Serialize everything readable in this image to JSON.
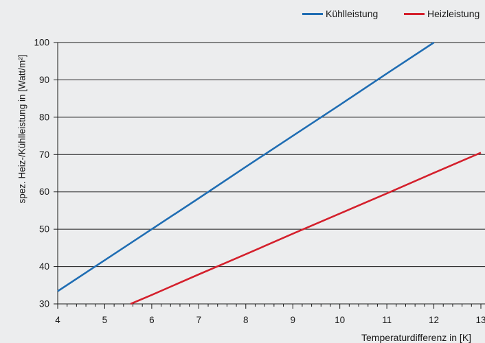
{
  "chart_data": {
    "type": "line",
    "xlabel": "Temperaturdifferenz in [K]",
    "ylabel": "spez. Heiz-/Kühlleistung in [Watt/m²]",
    "xlim": [
      4,
      13
    ],
    "ylim": [
      30,
      100
    ],
    "xticks": [
      4,
      5,
      6,
      7,
      8,
      9,
      10,
      11,
      12,
      13
    ],
    "yticks": [
      30,
      40,
      50,
      60,
      70,
      80,
      90,
      100
    ],
    "grid": "horizontal",
    "legend_position": "top-right",
    "series": [
      {
        "name": "Kühlleistung",
        "color": "#1f6db3",
        "x": [
          4,
          5,
          6,
          7,
          8,
          9,
          10,
          11,
          12
        ],
        "y": [
          33.4,
          41.7,
          50.0,
          58.3,
          66.7,
          75.0,
          83.3,
          91.7,
          100.0
        ]
      },
      {
        "name": "Heizleistung",
        "color": "#d4202c",
        "x": [
          5.55,
          6,
          7,
          8,
          9,
          10,
          11,
          12,
          13
        ],
        "y": [
          30.0,
          32.4,
          37.9,
          43.3,
          48.8,
          54.2,
          59.6,
          65.1,
          70.5
        ]
      }
    ]
  }
}
